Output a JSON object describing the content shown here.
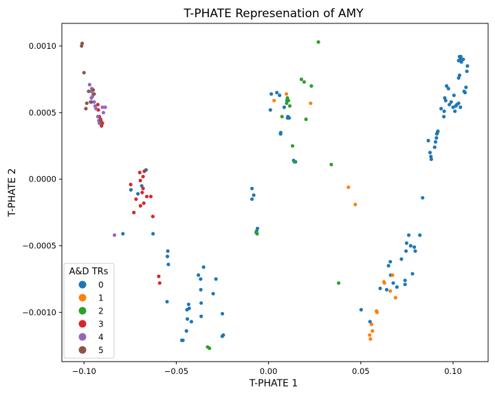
{
  "chart_data": {
    "type": "scatter",
    "title": "T-PHATE Represenation of AMY",
    "xlabel": "T-PHATE 1",
    "ylabel": "T-PHATE 2",
    "xlim": [
      -0.112,
      0.119
    ],
    "ylim": [
      -0.00137,
      0.00117
    ],
    "xticks": [
      -0.1,
      -0.05,
      0.0,
      0.05,
      0.1
    ],
    "xtick_labels": [
      "−0.10",
      "−0.05",
      "0.00",
      "0.05",
      "0.10"
    ],
    "yticks": [
      -0.001,
      -0.0005,
      0.0,
      0.0005,
      0.001
    ],
    "ytick_labels": [
      "−0.0010",
      "−0.0005",
      "0.0000",
      "0.0005",
      "0.0010"
    ],
    "grid": false,
    "legend": {
      "title": "A&D TRs",
      "placement": "lower-left"
    },
    "series": [
      {
        "name": "0",
        "color": "#1f77b4",
        "points": [
          [
            -0.0664,
            7e-05
          ],
          [
            -0.0708,
            -0.00011
          ],
          [
            -0.0746,
            -8e-05
          ],
          [
            -0.0687,
            -5e-05
          ],
          [
            -0.0626,
            -0.00041
          ],
          [
            -0.0789,
            -0.00041
          ],
          [
            -0.0546,
            -0.00054
          ],
          [
            -0.0548,
            -0.00058
          ],
          [
            -0.0543,
            -0.00064
          ],
          [
            -0.055,
            -0.00092
          ],
          [
            -0.038,
            -0.00072
          ],
          [
            -0.0368,
            -0.00075
          ],
          [
            -0.0367,
            -0.00083
          ],
          [
            -0.0365,
            -0.00093
          ],
          [
            -0.0365,
            -0.00103
          ],
          [
            -0.0352,
            -0.00066
          ],
          [
            -0.0285,
            -0.00075
          ],
          [
            -0.03,
            -0.00086
          ],
          [
            -0.025,
            -0.00101
          ],
          [
            -0.0251,
            -0.00118
          ],
          [
            -0.0245,
            -0.00117
          ],
          [
            -0.0433,
            -0.00094
          ],
          [
            -0.043,
            -0.00097
          ],
          [
            -0.0442,
            -0.00098
          ],
          [
            -0.044,
            -0.00105
          ],
          [
            -0.0445,
            -0.00114
          ],
          [
            -0.047,
            -0.00121
          ],
          [
            -0.0464,
            -0.00121
          ],
          [
            -0.0418,
            -0.00107
          ],
          [
            -0.009,
            -7e-05
          ],
          [
            -0.008,
            -0.00012
          ],
          [
            -0.009,
            -0.00015
          ],
          [
            -0.006,
            -0.00037
          ],
          [
            -0.0065,
            -0.00039
          ],
          [
            0.0015,
            0.00064
          ],
          [
            0.0045,
            0.00065
          ],
          [
            0.001,
            0.00052
          ],
          [
            0.006,
            0.00063
          ],
          [
            0.01,
            0.00059
          ],
          [
            0.0085,
            0.00054
          ],
          [
            0.0103,
            0.00046
          ],
          [
            0.0105,
            0.00047
          ],
          [
            0.0112,
            0.00046
          ],
          [
            0.0065,
            0.00034
          ],
          [
            0.0066,
            0.00035
          ],
          [
            0.0136,
            0.00014
          ],
          [
            0.0146,
            0.00013
          ],
          [
            0.0502,
            -0.00098
          ],
          [
            0.055,
            -0.00107
          ],
          [
            0.0605,
            -0.00082
          ],
          [
            0.064,
            -0.00083
          ],
          [
            0.066,
            -0.00062
          ],
          [
            0.065,
            -0.00065
          ],
          [
            0.0662,
            -0.00072
          ],
          [
            0.0676,
            -0.00078
          ],
          [
            0.0696,
            -0.00081
          ],
          [
            0.074,
            -0.00076
          ],
          [
            0.074,
            -0.00079
          ],
          [
            0.072,
            -0.0006
          ],
          [
            0.0745,
            -0.00054
          ],
          [
            0.0748,
            -0.00048
          ],
          [
            0.076,
            -0.00042
          ],
          [
            0.077,
            -0.0005
          ],
          [
            0.078,
            -0.00071
          ],
          [
            0.079,
            -0.00051
          ],
          [
            0.0795,
            -0.00054
          ],
          [
            0.082,
            -0.00042
          ],
          [
            0.0835,
            -0.00014
          ],
          [
            0.0866,
            0.00029
          ],
          [
            0.088,
            0.00017
          ],
          [
            0.0875,
            0.0002
          ],
          [
            0.0882,
            0.00015
          ],
          [
            0.09,
            0.00024
          ],
          [
            0.0905,
            0.00028
          ],
          [
            0.091,
            0.00031
          ],
          [
            0.0912,
            0.00034
          ],
          [
            0.0915,
            0.00035
          ],
          [
            0.0918,
            0.00036
          ],
          [
            0.0935,
            0.00053
          ],
          [
            0.095,
            0.00047
          ],
          [
            0.0952,
            0.00051
          ],
          [
            0.0955,
            0.00061
          ],
          [
            0.096,
            0.00059
          ],
          [
            0.0965,
            0.0007
          ],
          [
            0.0975,
            0.00068
          ],
          [
            0.098,
            0.00056
          ],
          [
            0.099,
            0.00058
          ],
          [
            0.1,
            0.00054
          ],
          [
            0.1005,
            0.00063
          ],
          [
            0.101,
            0.00051
          ],
          [
            0.1015,
            0.00055
          ],
          [
            0.102,
            0.00056
          ],
          [
            0.103,
            0.00057
          ],
          [
            0.104,
            0.00054
          ],
          [
            0.103,
            0.00076
          ],
          [
            0.1035,
            0.00078
          ],
          [
            0.103,
            0.00089
          ],
          [
            0.1035,
            0.00092
          ],
          [
            0.104,
            0.0009
          ],
          [
            0.1042,
            0.00092
          ],
          [
            0.1045,
            0.00088
          ],
          [
            0.1055,
            0.0009
          ],
          [
            0.106,
            0.00066
          ],
          [
            0.1065,
            0.00065
          ],
          [
            0.107,
            0.00069
          ],
          [
            0.1075,
            0.00081
          ],
          [
            0.1078,
            0.00085
          ]
        ]
      },
      {
        "name": "1",
        "color": "#ff7f0e",
        "points": [
          [
            0.003,
            0.00059
          ],
          [
            0.0097,
            0.00064
          ],
          [
            0.0228,
            0.00057
          ],
          [
            0.0433,
            -6e-05
          ],
          [
            0.047,
            -0.00019
          ],
          [
            0.0548,
            -0.00117
          ],
          [
            0.0552,
            -0.0012
          ],
          [
            0.0563,
            -0.00114
          ],
          [
            0.0558,
            -0.00109
          ],
          [
            0.0588,
            -0.001
          ],
          [
            0.0585,
            -0.00099
          ],
          [
            0.0625,
            -0.00077
          ],
          [
            0.0628,
            -0.00078
          ],
          [
            0.066,
            -0.00084
          ],
          [
            0.0672,
            -0.00072
          ],
          [
            0.0688,
            -0.00089
          ]
        ]
      },
      {
        "name": "2",
        "color": "#2ca02c",
        "points": [
          [
            0.027,
            0.00103
          ],
          [
            0.0178,
            0.00075
          ],
          [
            0.0193,
            0.00073
          ],
          [
            0.0232,
            0.0007
          ],
          [
            0.0073,
            0.00047
          ],
          [
            0.0098,
            0.00057
          ],
          [
            0.0108,
            0.00059
          ],
          [
            0.0115,
            0.00055
          ],
          [
            0.0102,
            0.00061
          ],
          [
            0.0203,
            0.00045
          ],
          [
            0.013,
            0.00025
          ],
          [
            0.014,
            0.00013
          ],
          [
            0.034,
            0.00011
          ],
          [
            -0.0067,
            -0.0004
          ],
          [
            -0.0062,
            -0.00041
          ],
          [
            0.038,
            -0.00078
          ],
          [
            -0.033,
            -0.00126
          ],
          [
            -0.032,
            -0.00127
          ]
        ]
      },
      {
        "name": "3",
        "color": "#d62728",
        "points": [
          [
            -0.0698,
            5e-05
          ],
          [
            -0.068,
            2e-05
          ],
          [
            -0.0695,
            -1e-05
          ],
          [
            -0.068,
            -7e-05
          ],
          [
            -0.0685,
            -0.0001
          ],
          [
            -0.066,
            -0.00013
          ],
          [
            -0.0638,
            -0.00013
          ],
          [
            -0.0673,
            6e-05
          ],
          [
            -0.0747,
            -4e-05
          ],
          [
            -0.0718,
            -0.00015
          ],
          [
            -0.0676,
            -0.00018
          ],
          [
            -0.073,
            -0.00025
          ],
          [
            -0.0627,
            -0.00028
          ],
          [
            -0.0694,
            -0.0002
          ],
          [
            -0.0925,
            0.00056
          ],
          [
            -0.0922,
            0.00052
          ],
          [
            -0.0917,
            0.00047
          ],
          [
            -0.0905,
            0.00043
          ],
          [
            -0.091,
            0.00045
          ],
          [
            -0.09,
            0.00042
          ],
          [
            -0.0905,
            0.0004
          ],
          [
            -0.0595,
            -0.00073
          ],
          [
            -0.059,
            -0.00078
          ]
        ]
      },
      {
        "name": "4",
        "color": "#9467bd",
        "points": [
          [
            -0.097,
            0.00071
          ],
          [
            -0.0958,
            0.00068
          ],
          [
            -0.096,
            0.00066
          ],
          [
            -0.095,
            0.00064
          ],
          [
            -0.0955,
            0.00062
          ],
          [
            -0.096,
            0.00061
          ],
          [
            -0.0965,
            0.00058
          ],
          [
            -0.0945,
            0.00058
          ],
          [
            -0.094,
            0.00055
          ],
          [
            -0.0935,
            0.00053
          ],
          [
            -0.09,
            0.00054
          ],
          [
            -0.0885,
            0.00054
          ],
          [
            -0.0895,
            0.0005
          ],
          [
            -0.0925,
            0.00047
          ],
          [
            -0.092,
            0.00044
          ],
          [
            -0.0917,
            0.00042
          ],
          [
            -0.0835,
            -0.00042
          ]
        ]
      },
      {
        "name": "5",
        "color": "#8c564b",
        "points": [
          [
            -0.101,
            0.00102
          ],
          [
            -0.1013,
            0.001
          ],
          [
            -0.1,
            0.0008
          ],
          [
            -0.0975,
            0.00066
          ],
          [
            -0.095,
            0.00067
          ],
          [
            -0.0945,
            0.00064
          ],
          [
            -0.096,
            0.00058
          ],
          [
            -0.0985,
            0.00057
          ],
          [
            -0.099,
            0.00053
          ],
          [
            -0.091,
            0.00044
          ],
          [
            -0.0905,
            0.00042
          ]
        ]
      }
    ]
  }
}
